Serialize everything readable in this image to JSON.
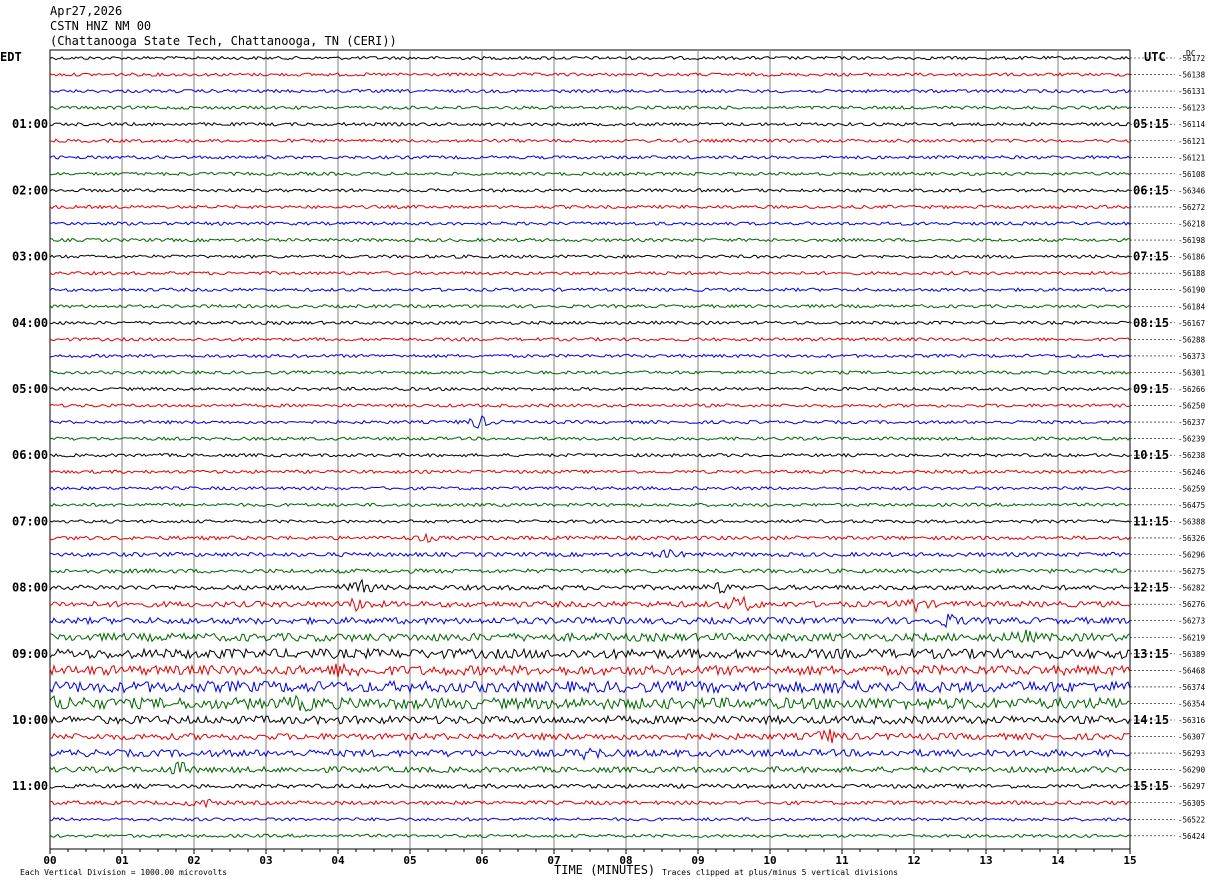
{
  "header": {
    "date": "Apr27,2026",
    "station": "CSTN HNZ NM 00",
    "site": "(Chattanooga State Tech, Chattanooga, TN (CERI))"
  },
  "axes": {
    "left_tz": "EDT",
    "right_tz": "UTC",
    "dc_label": "DC",
    "xlabel": "TIME (MINUTES)",
    "x_ticks": [
      "00",
      "01",
      "02",
      "03",
      "04",
      "05",
      "06",
      "07",
      "08",
      "09",
      "10",
      "11",
      "12",
      "13",
      "14",
      "15"
    ]
  },
  "footer": {
    "left_note": "Each Vertical Division = 1000.00 microvolts",
    "right_note": "Traces clipped at plus/minus 5 vertical divisions"
  },
  "colors": {
    "trace_cycle": [
      "#000000",
      "#e00000",
      "#0000e0",
      "#006400"
    ],
    "grid": "#808080"
  },
  "chart_data": {
    "type": "line",
    "title": "CSTN HNZ NM 00",
    "xlabel": "TIME (MINUTES)",
    "xlim": [
      0,
      15
    ],
    "grid": true,
    "rows_per_hour": 4,
    "left_hour_labels": [
      "01:00",
      "02:00",
      "03:00",
      "04:00",
      "05:00",
      "06:00",
      "07:00",
      "08:00",
      "09:00",
      "10:00",
      "11:00"
    ],
    "right_hour_labels": [
      "05:15",
      "06:15",
      "07:15",
      "08:15",
      "09:15",
      "10:15",
      "11:15",
      "12:15",
      "13:15",
      "14:15",
      "15:15"
    ],
    "dc_offsets": [
      "-56172",
      "-56138",
      "-56131",
      "-56123",
      "-56114",
      "-56121",
      "-56121",
      "-56108",
      "-56346",
      "-56272",
      "-56218",
      "-56198",
      "-56186",
      "-56188",
      "-56190",
      "-56184",
      "-56167",
      "-56288",
      "-56373",
      "-56301",
      "-56266",
      "-56250",
      "-56237",
      "-56239",
      "-56238",
      "-56246",
      "-56259",
      "-56475",
      "-56388",
      "-56326",
      "-56296",
      "-56275",
      "-56282",
      "-56276",
      "-56273",
      "-56219",
      "-56389",
      "-56468",
      "-56374",
      "-56354",
      "-56316",
      "-56307",
      "-56293",
      "-56290",
      "-56297",
      "-56305",
      "-56522",
      "-56424"
    ],
    "trace_amplitude": [
      1,
      1,
      1,
      1,
      1,
      1,
      1,
      1,
      1,
      1,
      1,
      1,
      1,
      1,
      1,
      1,
      1,
      1,
      1,
      1,
      1,
      1,
      1,
      1,
      1,
      1,
      1,
      1,
      1,
      1.2,
      1.3,
      1.3,
      1.5,
      1.8,
      2,
      2.5,
      3,
      3,
      3.5,
      3.5,
      2.5,
      2,
      2.2,
      1.8,
      1.3,
      1.2,
      1,
      1
    ],
    "events": [
      {
        "row": 22,
        "minute": 5.95,
        "amp": 8
      },
      {
        "row": 29,
        "minute": 5.2,
        "amp": 4
      },
      {
        "row": 30,
        "minute": 8.6,
        "amp": 5
      },
      {
        "row": 32,
        "minute": 4.3,
        "amp": 10
      },
      {
        "row": 32,
        "minute": 9.3,
        "amp": 6
      },
      {
        "row": 33,
        "minute": 4.3,
        "amp": 8
      },
      {
        "row": 33,
        "minute": 9.6,
        "amp": 12
      },
      {
        "row": 33,
        "minute": 12.0,
        "amp": 8
      },
      {
        "row": 34,
        "minute": 12.5,
        "amp": 6
      },
      {
        "row": 35,
        "minute": 13.5,
        "amp": 7
      },
      {
        "row": 37,
        "minute": 4.1,
        "amp": 10
      },
      {
        "row": 38,
        "minute": 11.0,
        "amp": 8
      },
      {
        "row": 39,
        "minute": 0.2,
        "amp": 9
      },
      {
        "row": 39,
        "minute": 3.5,
        "amp": 9
      },
      {
        "row": 41,
        "minute": 10.8,
        "amp": 9
      },
      {
        "row": 42,
        "minute": 7.5,
        "amp": 7
      },
      {
        "row": 43,
        "minute": 1.8,
        "amp": 8
      },
      {
        "row": 45,
        "minute": 2.1,
        "amp": 6
      }
    ]
  }
}
